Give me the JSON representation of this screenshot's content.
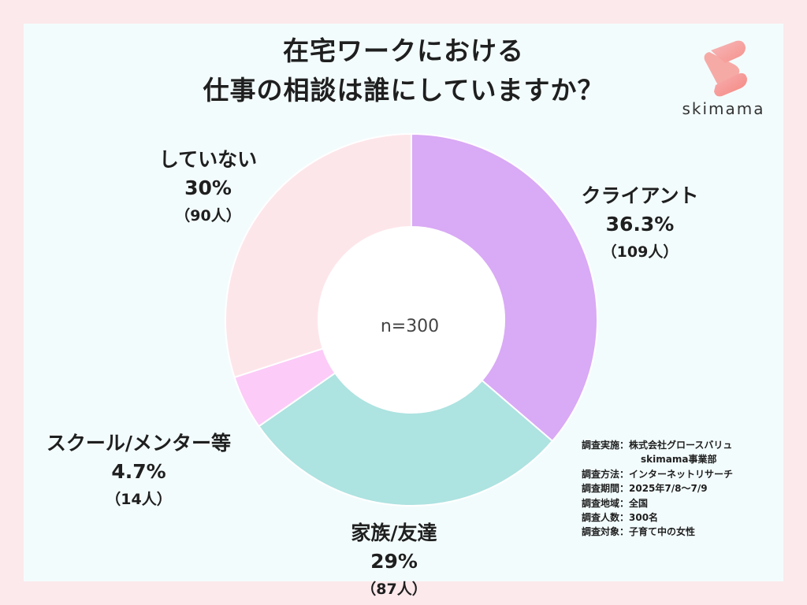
{
  "title_line1": "在宅ワークにおける",
  "title_line2": "仕事の相談は誰にしていますか？",
  "brand": "skimama",
  "chart_data": {
    "type": "pie",
    "center_label": "n=300",
    "slices": [
      {
        "label": "クライアント",
        "percent_text": "36.3%",
        "count_text": "（109人）",
        "value": 36.3,
        "color": "#d9aaf5"
      },
      {
        "label": "家族/友達",
        "percent_text": "29%",
        "count_text": "（87人）",
        "value": 29,
        "color": "#ade3e1"
      },
      {
        "label": "スクール/メンター等",
        "percent_text": "4.7%",
        "count_text": "（14人）",
        "value": 4.7,
        "color": "#fccbf8"
      },
      {
        "label": "していない",
        "percent_text": "30%",
        "count_text": "（90人）",
        "value": 30,
        "color": "#fde6ea"
      }
    ]
  },
  "notes": [
    {
      "text": "調査実施：株式会社グロースバリュ"
    },
    {
      "text": "skimama事業部",
      "continuation": true
    },
    {
      "text": "調査方法：インターネットリサーチ"
    },
    {
      "text": "調査期間：2025年7/8〜7/9"
    },
    {
      "text": "調査地域：全国"
    },
    {
      "text": "調査人数：300名"
    },
    {
      "text": "調査対象：子育て中の女性"
    }
  ]
}
